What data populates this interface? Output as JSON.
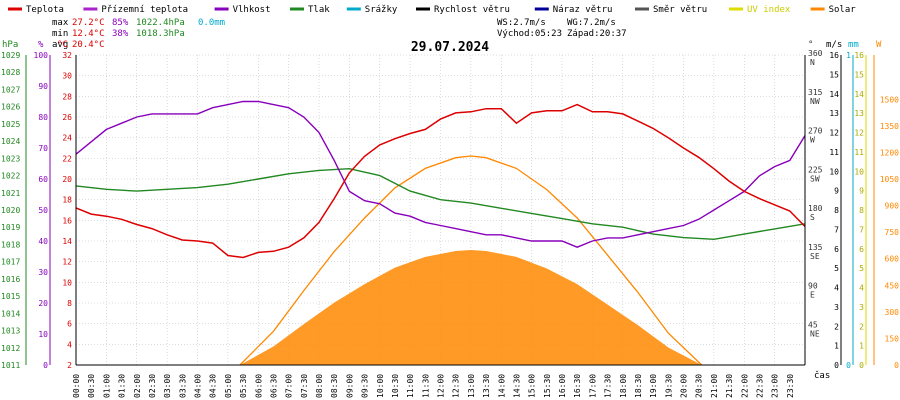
{
  "chart_data": {
    "type": "line",
    "title": "29.07.2024",
    "legend": {
      "placement": "top",
      "items": [
        {
          "label": "Teplota",
          "color": "#dd0000"
        },
        {
          "label": "Přízemní teplota",
          "color": "#aa22cc"
        },
        {
          "label": "Vlhkost",
          "color": "#8800bb"
        },
        {
          "label": "Tlak",
          "color": "#228822"
        },
        {
          "label": "Srážky",
          "color": "#00aacc"
        },
        {
          "label": "Rychlost větru",
          "color": "#000000"
        },
        {
          "label": "Náraz větru",
          "color": "#000099"
        },
        {
          "label": "Směr větru",
          "color": "#555555"
        },
        {
          "label": "UV index",
          "color": "#dddd00"
        },
        {
          "label": "Solar",
          "color": "#ff8800"
        }
      ]
    },
    "stats": {
      "max": {
        "label": "max",
        "temp": "27.2°C",
        "hum": "85%",
        "press": "1022.4hPa",
        "rain": "0.0mm"
      },
      "min": {
        "label": "min",
        "temp": "12.4°C",
        "hum": "38%",
        "press": "1018.3hPa"
      },
      "avg": {
        "label": "avg",
        "temp": "20.4°C"
      },
      "ws": "WS:2.7m/s",
      "wg": "WG:7.2m/s",
      "sunrise": "Východ:05:23",
      "sunset": "Západ:20:37"
    },
    "axes": {
      "hpa": {
        "unit": "hPa",
        "min": 1011,
        "max": 1029,
        "ticks": [
          1011,
          1012,
          1013,
          1014,
          1015,
          1016,
          1017,
          1018,
          1019,
          1020,
          1021,
          1022,
          1023,
          1024,
          1025,
          1026,
          1027,
          1028,
          1029
        ]
      },
      "percent": {
        "unit": "%",
        "min": 0,
        "max": 100,
        "ticks": [
          0,
          10,
          20,
          30,
          40,
          50,
          60,
          70,
          80,
          90,
          100
        ]
      },
      "celsius": {
        "unit": "°C",
        "min": 2,
        "max": 32,
        "ticks": [
          2,
          4,
          6,
          8,
          10,
          12,
          14,
          16,
          18,
          20,
          22,
          24,
          26,
          28,
          30,
          32
        ]
      },
      "direction": {
        "unit": "°",
        "min": 0,
        "max": 360,
        "ticks": [
          {
            "v": 45,
            "t": "45",
            "c": "NE"
          },
          {
            "v": 90,
            "t": "90",
            "c": "E"
          },
          {
            "v": 135,
            "t": "135",
            "c": "SE"
          },
          {
            "v": 180,
            "t": "180",
            "c": "S"
          },
          {
            "v": 225,
            "t": "225",
            "c": "SW"
          },
          {
            "v": 270,
            "t": "270",
            "c": "W"
          },
          {
            "v": 315,
            "t": "315",
            "c": "NW"
          },
          {
            "v": 360,
            "t": "360",
            "c": "N"
          }
        ]
      },
      "ms": {
        "unit": "m/s",
        "min": 0,
        "max": 16,
        "ticks": [
          0,
          1,
          2,
          3,
          4,
          5,
          6,
          7,
          8,
          9,
          10,
          11,
          12,
          13,
          14,
          15,
          16
        ]
      },
      "mm": {
        "unit": "mm",
        "min": 0,
        "max": 1,
        "ticks": [
          0,
          1
        ]
      },
      "uv": {
        "unit": "",
        "ticks": [
          0,
          1,
          2,
          3,
          4,
          5,
          6,
          7,
          8,
          9,
          10,
          11,
          12,
          13,
          14,
          15,
          16
        ]
      },
      "solar": {
        "unit": "W",
        "min": 0,
        "max": 1750,
        "ticks": [
          0,
          150,
          300,
          450,
          600,
          750,
          900,
          1050,
          1200,
          1350,
          1500
        ]
      },
      "time": {
        "label": "čas",
        "ticks": [
          "00:00",
          "00:30",
          "01:00",
          "01:30",
          "02:00",
          "02:30",
          "03:00",
          "03:30",
          "04:00",
          "04:30",
          "05:00",
          "05:30",
          "06:00",
          "06:30",
          "07:00",
          "07:30",
          "08:00",
          "08:30",
          "09:00",
          "09:30",
          "10:00",
          "10:30",
          "11:00",
          "11:30",
          "12:00",
          "12:30",
          "13:00",
          "13:30",
          "14:00",
          "14:30",
          "15:00",
          "15:30",
          "16:00",
          "16:30",
          "17:00",
          "17:30",
          "18:00",
          "18:30",
          "19:00",
          "19:30",
          "20:00",
          "20:30",
          "21:00",
          "21:30",
          "22:00",
          "22:30",
          "23:00",
          "23:30"
        ]
      }
    },
    "series": [
      {
        "name": "Teplota",
        "unit": "°C",
        "color": "#dd0000",
        "x": [
          0,
          0.5,
          1,
          1.5,
          2,
          2.5,
          3,
          3.5,
          4,
          4.5,
          5,
          5.5,
          6,
          6.5,
          7,
          7.5,
          8,
          8.5,
          9,
          9.5,
          10,
          10.5,
          11,
          11.5,
          12,
          12.5,
          13,
          13.5,
          14,
          14.5,
          15,
          15.5,
          16,
          16.5,
          17,
          17.5,
          18,
          18.5,
          19,
          19.5,
          20,
          20.5,
          21,
          21.5,
          22,
          22.5,
          23,
          23.5,
          24
        ],
        "y": [
          17.2,
          16.6,
          16.4,
          16.1,
          15.6,
          15.2,
          14.6,
          14.1,
          14.0,
          13.8,
          12.6,
          12.4,
          12.9,
          13.0,
          13.4,
          14.3,
          15.8,
          18.1,
          20.6,
          22.2,
          23.3,
          23.9,
          24.4,
          24.8,
          25.8,
          26.4,
          26.5,
          26.8,
          26.8,
          25.4,
          26.4,
          26.6,
          26.6,
          27.2,
          26.5,
          26.5,
          26.3,
          25.6,
          24.9,
          24.0,
          23.0,
          22.1,
          21.0,
          19.8,
          18.8,
          18.1,
          17.5,
          16.9,
          15.4
        ]
      },
      {
        "name": "Vlhkost",
        "unit": "%",
        "color": "#8800bb",
        "x": [
          0,
          0.5,
          1,
          1.5,
          2,
          2.5,
          3,
          3.5,
          4,
          4.5,
          5,
          5.5,
          6,
          6.5,
          7,
          7.5,
          8,
          8.5,
          9,
          9.5,
          10,
          10.5,
          11,
          11.5,
          12,
          12.5,
          13,
          13.5,
          14,
          14.5,
          15,
          15.5,
          16,
          16.5,
          17,
          17.5,
          18,
          18.5,
          19,
          19.5,
          20,
          20.5,
          21,
          21.5,
          22,
          22.5,
          23,
          23.5,
          24
        ],
        "y": [
          68,
          72,
          76,
          78,
          80,
          81,
          81,
          81,
          81,
          83,
          84,
          85,
          85,
          84,
          83,
          80,
          75,
          66,
          56,
          53,
          52,
          49,
          48,
          46,
          45,
          44,
          43,
          42,
          42,
          41,
          40,
          40,
          40,
          38,
          40,
          41,
          41,
          42,
          43,
          44,
          45,
          47,
          50,
          53,
          56,
          61,
          64,
          66,
          74
        ]
      },
      {
        "name": "Tlak",
        "unit": "hPa",
        "color": "#228822",
        "x": [
          0,
          1,
          2,
          3,
          4,
          5,
          6,
          7,
          8,
          9,
          10,
          11,
          12,
          13,
          14,
          15,
          16,
          17,
          18,
          19,
          20,
          21,
          22,
          23,
          24
        ],
        "y": [
          1021.4,
          1021.2,
          1021.1,
          1021.2,
          1021.3,
          1021.5,
          1021.8,
          1022.1,
          1022.3,
          1022.4,
          1022.0,
          1021.1,
          1020.6,
          1020.4,
          1020.1,
          1019.8,
          1019.5,
          1019.2,
          1019.0,
          1018.6,
          1018.4,
          1018.3,
          1018.6,
          1018.9,
          1019.2
        ]
      },
      {
        "name": "Solar",
        "unit": "W",
        "color": "#ff8800",
        "x": [
          5.4,
          6.5,
          7.5,
          8.5,
          9.5,
          10.5,
          11.5,
          12.5,
          13,
          13.5,
          14.5,
          15.5,
          16.5,
          17.5,
          18.5,
          19.5,
          20.6
        ],
        "y": [
          0,
          190,
          420,
          640,
          830,
          1000,
          1110,
          1170,
          1180,
          1170,
          1110,
          990,
          830,
          620,
          410,
          180,
          0
        ]
      }
    ]
  }
}
